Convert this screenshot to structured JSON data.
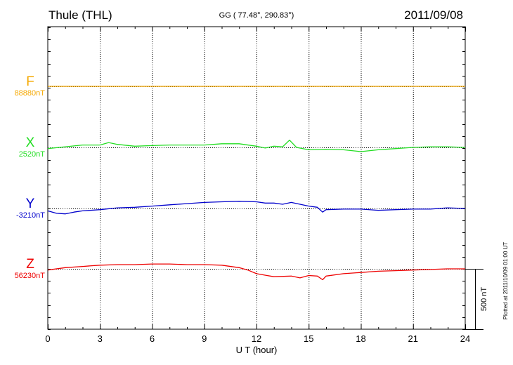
{
  "header": {
    "station": "Thule (THL)",
    "coords": "GG ( 77.48°, 290.83°)",
    "date": "2011/09/08"
  },
  "footer": {
    "plotted": "Plotted at 2011/10/09 01:00 UT"
  },
  "chart_data": {
    "type": "line",
    "title": "Thule (THL)",
    "xlabel": "U T (hour)",
    "xlim": [
      0,
      24
    ],
    "x_ticks": [
      "0",
      "3",
      "6",
      "9",
      "12",
      "15",
      "18",
      "21",
      "24"
    ],
    "grid": "dotted vertical lines every 3 hours",
    "scale_bar": "500 nT",
    "scale_bar_nT": 500,
    "series": [
      {
        "name": "F",
        "baseline_label": "88880nT",
        "baseline_nT": 88880,
        "color": "#f5a800",
        "x": [
          0,
          3,
          6,
          9,
          12,
          15,
          18,
          21,
          24
        ],
        "values": [
          0,
          0,
          0,
          0,
          0,
          0,
          0,
          0,
          0
        ]
      },
      {
        "name": "X",
        "baseline_label": "2520nT",
        "baseline_nT": 2520,
        "color": "#22dd22",
        "x": [
          0,
          1,
          2,
          3,
          3.5,
          4,
          5,
          6,
          7,
          8,
          9,
          10,
          11,
          12,
          12.5,
          13,
          13.5,
          13.9,
          14.3,
          15,
          16,
          17,
          18,
          19,
          20,
          21,
          22,
          23,
          24
        ],
        "values": [
          -10,
          5,
          20,
          20,
          40,
          25,
          10,
          15,
          20,
          20,
          20,
          30,
          30,
          10,
          -5,
          10,
          5,
          60,
          0,
          -20,
          -15,
          -20,
          -35,
          -20,
          -10,
          0,
          5,
          5,
          0
        ]
      },
      {
        "name": "Y",
        "baseline_label": "-3210nT",
        "baseline_nT": -3210,
        "color": "#0000cc",
        "x": [
          0,
          0.5,
          1,
          1.5,
          2,
          3,
          4,
          5,
          6,
          7,
          8,
          9,
          10,
          11,
          12,
          12.5,
          13,
          13.5,
          14,
          14.5,
          15,
          15.5,
          15.8,
          16,
          17,
          18,
          19,
          20,
          21,
          22,
          23,
          24
        ],
        "values": [
          -20,
          -40,
          -45,
          -30,
          -20,
          -10,
          5,
          10,
          20,
          30,
          40,
          50,
          55,
          60,
          55,
          45,
          45,
          35,
          50,
          35,
          20,
          10,
          -30,
          -10,
          -5,
          -5,
          -15,
          -10,
          -5,
          -5,
          5,
          0
        ]
      },
      {
        "name": "Z",
        "baseline_label": "56230nT",
        "baseline_nT": 56230,
        "color": "#ee0000",
        "x": [
          0,
          1,
          2,
          3,
          4,
          5,
          6,
          7,
          8,
          9,
          10,
          11,
          11.5,
          12,
          13,
          14,
          14.5,
          15,
          15.5,
          15.8,
          16,
          17,
          18,
          19,
          20,
          21,
          22,
          23,
          24
        ],
        "values": [
          -10,
          10,
          20,
          30,
          35,
          35,
          40,
          40,
          35,
          35,
          30,
          10,
          -10,
          -40,
          -65,
          -60,
          -75,
          -55,
          -60,
          -90,
          -60,
          -40,
          -30,
          -20,
          -15,
          -10,
          -5,
          0,
          0
        ]
      }
    ]
  }
}
